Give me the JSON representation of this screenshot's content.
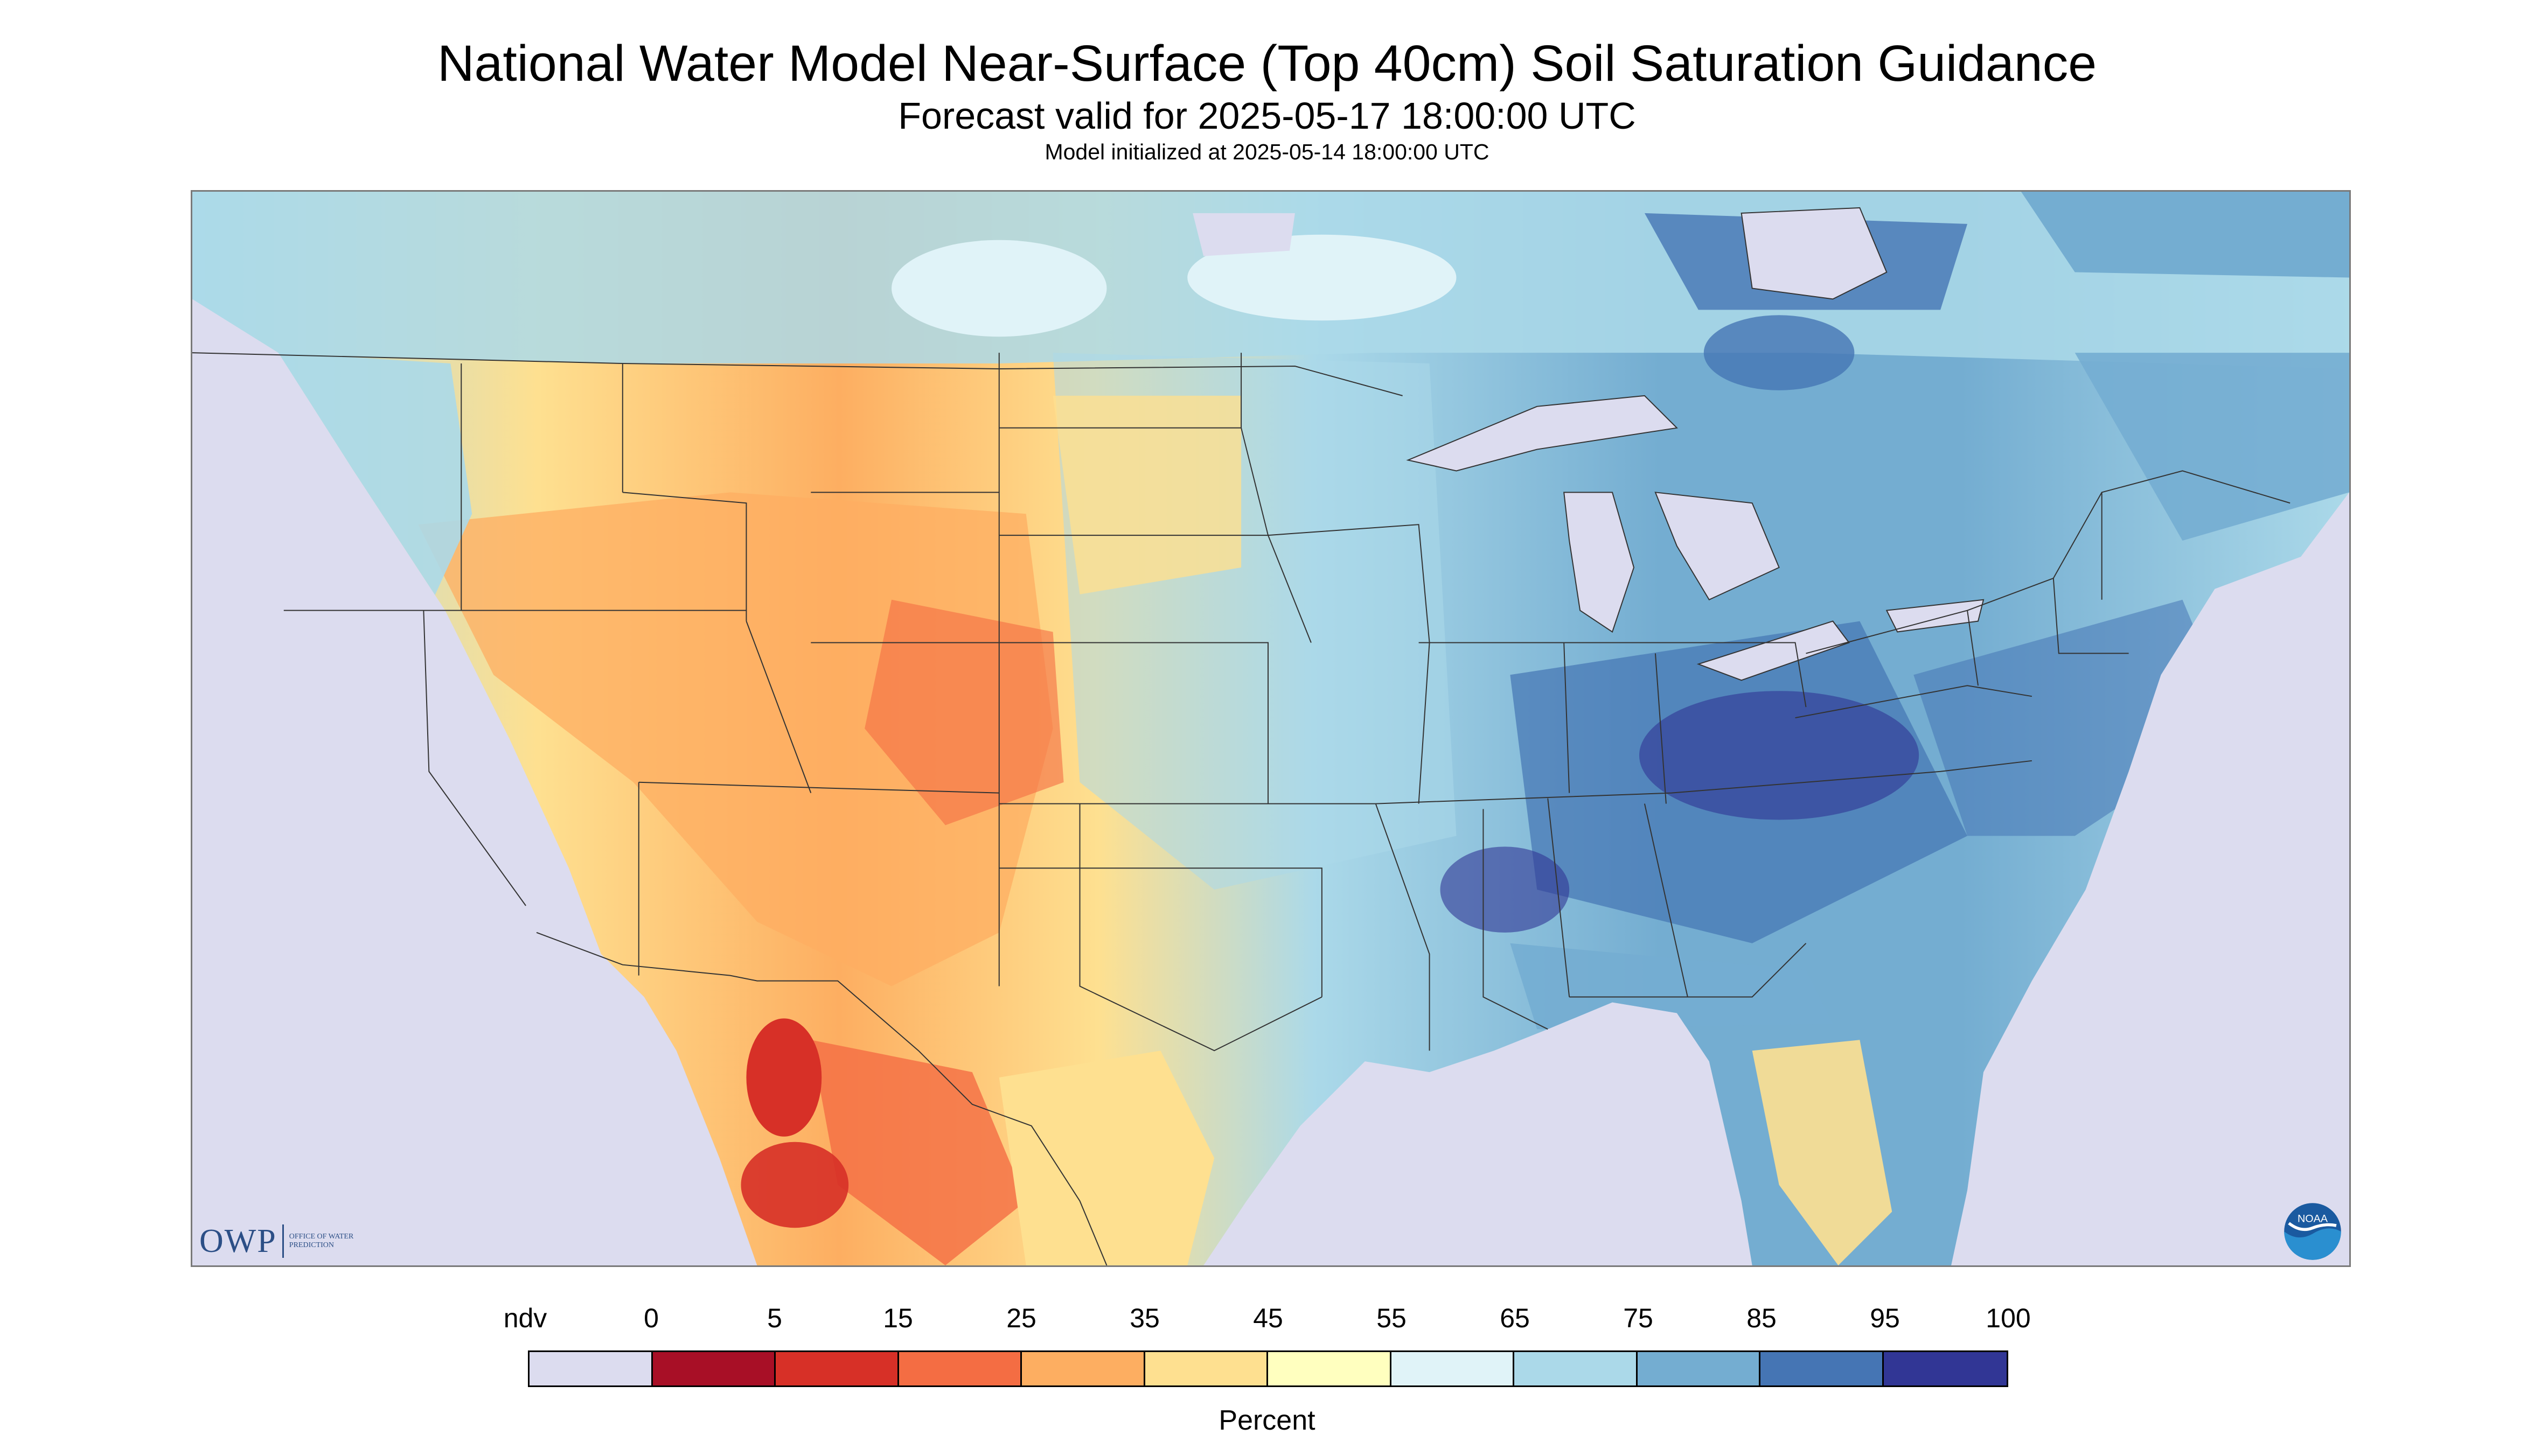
{
  "title": "National Water Model Near-Surface (Top 40cm) Soil Saturation Guidance",
  "subtitle": "Forecast valid for 2025-05-17 18:00:00 UTC",
  "init_line": "Model initialized at 2025-05-14 18:00:00 UTC",
  "logos": {
    "owp_text": "OWP",
    "owp_subtext": "OFFICE OF WATER PREDICTION",
    "noaa_text": "NOAA"
  },
  "legend": {
    "tick_labels": [
      "ndv",
      "0",
      "5",
      "15",
      "25",
      "35",
      "45",
      "55",
      "65",
      "75",
      "85",
      "95",
      "100"
    ],
    "colors": [
      "#dcdcef",
      "#a80f26",
      "#d73027",
      "#f46d43",
      "#fdae61",
      "#fee090",
      "#ffffbf",
      "#e0f3f8",
      "#abd9e9",
      "#74add1",
      "#4575b4",
      "#313695"
    ],
    "units": "Percent"
  },
  "map_colors": {
    "no_data": "#dcdcef",
    "water": "#dcdcef",
    "boundary": "#333333"
  }
}
